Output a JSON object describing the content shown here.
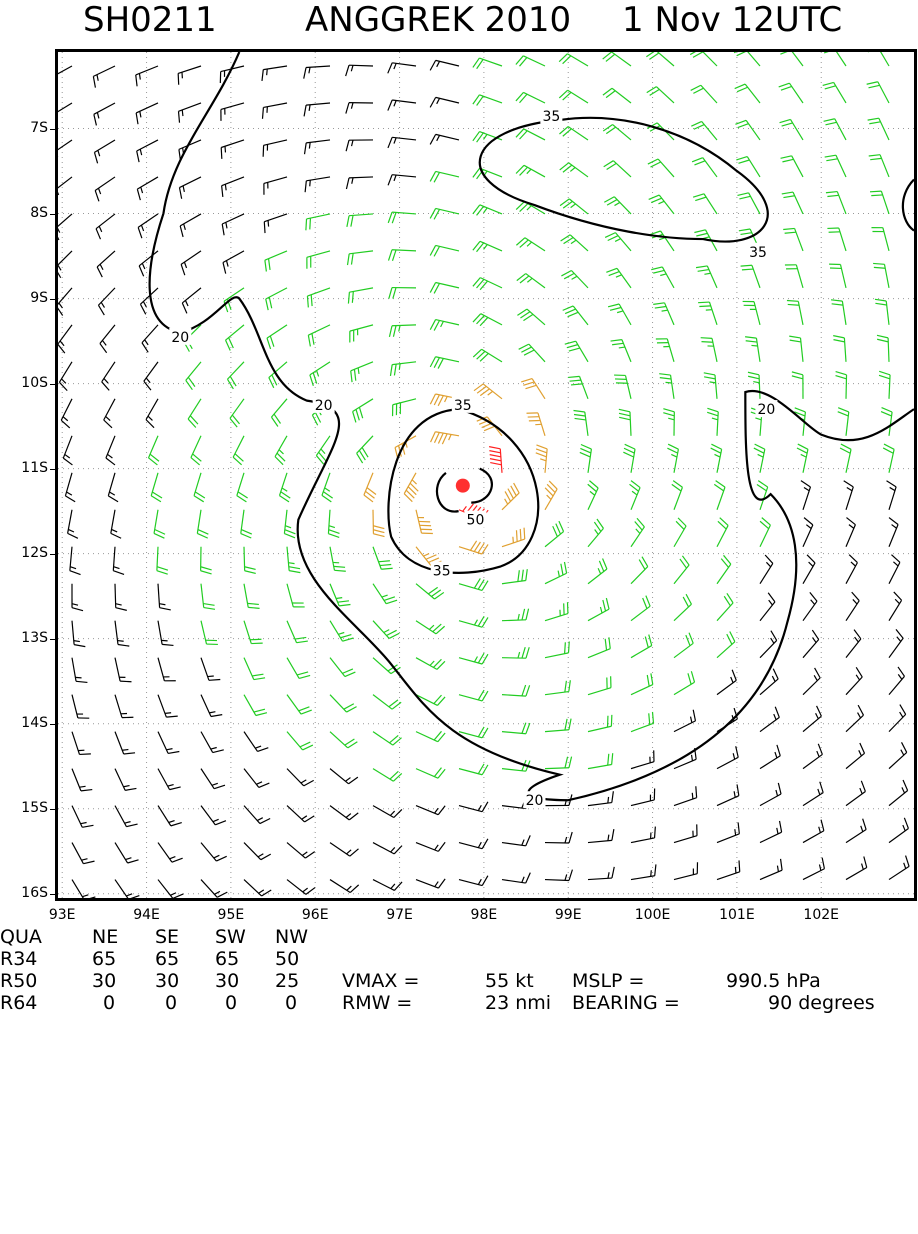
{
  "title": {
    "storm_id": "SH0211",
    "name_year": "ANGGREK 2010",
    "datetime": "1 Nov 12UTC"
  },
  "map": {
    "lat_labels": [
      "7S",
      "8S",
      "9S",
      "10S",
      "11S",
      "12S",
      "13S",
      "14S",
      "15S",
      "16S"
    ],
    "lon_labels": [
      "93E",
      "94E",
      "95E",
      "96E",
      "97E",
      "98E",
      "99E",
      "100E",
      "101E",
      "102E"
    ],
    "lon_range": [
      92.95,
      103.1
    ],
    "lat_range": [
      -16.05,
      -6.1
    ],
    "center": {
      "lon": 97.75,
      "lat": -11.2
    },
    "center_color": "#ff3030",
    "contour_labels": [
      {
        "text": "35",
        "lon": 98.8,
        "lat": -6.85
      },
      {
        "text": "35",
        "lon": 101.25,
        "lat": -8.45
      },
      {
        "text": "20",
        "lon": 94.4,
        "lat": -9.45
      },
      {
        "text": "20",
        "lon": 96.1,
        "lat": -10.25
      },
      {
        "text": "20",
        "lon": 101.35,
        "lat": -10.3
      },
      {
        "text": "35",
        "lon": 97.75,
        "lat": -10.25
      },
      {
        "text": "50",
        "lon": 97.9,
        "lat": -11.6
      },
      {
        "text": "35",
        "lon": 97.5,
        "lat": -12.2
      },
      {
        "text": "20",
        "lon": 98.6,
        "lat": -14.9
      }
    ],
    "barb_colors": {
      "low": "#000000",
      "mid": "#22cc22",
      "high": "#e0a030",
      "core": "#ff2020"
    }
  },
  "table": {
    "header": [
      "QUA",
      "NE",
      "SE",
      "SW",
      "NW"
    ],
    "rows": [
      {
        "label": "R34",
        "values": [
          "65",
          "65",
          "65",
          "50"
        ]
      },
      {
        "label": "R50",
        "values": [
          "30",
          "30",
          "30",
          "25"
        ]
      },
      {
        "label": "R64",
        "values": [
          "0",
          "0",
          "0",
          "0"
        ]
      }
    ]
  },
  "stats": {
    "vmax_label": "VMAX =",
    "vmax_value": "55 kt",
    "mslp_label": "MSLP =",
    "mslp_value": "990.5 hPa",
    "rmw_label": "RMW =",
    "rmw_value": "23 nmi",
    "bearing_label": "BEARING =",
    "bearing_value": "90 degrees"
  }
}
